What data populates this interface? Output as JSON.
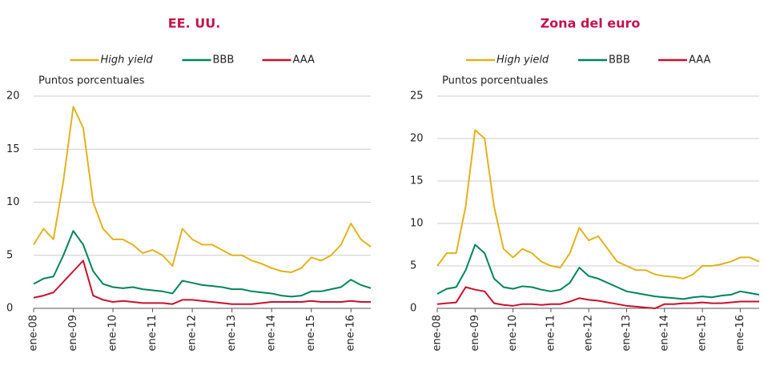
{
  "chart_data": [
    {
      "type": "line",
      "title": "EE. UU.",
      "y_label": "Puntos porcentuales",
      "categories": [
        "ene-08",
        null,
        null,
        null,
        "ene-09",
        null,
        null,
        null,
        "ene-10",
        null,
        null,
        null,
        "ene-11",
        null,
        null,
        null,
        "ene-12",
        null,
        null,
        null,
        "ene-13",
        null,
        null,
        null,
        "ene-14",
        null,
        null,
        null,
        "ene-15",
        null,
        null,
        null,
        "ene-16",
        null,
        null
      ],
      "series": [
        {
          "name": "High yield",
          "color": "#e0b21e",
          "values": [
            6,
            7.5,
            6.5,
            12,
            19,
            17,
            10,
            7.5,
            6.5,
            6.5,
            6,
            5.2,
            5.5,
            5,
            4,
            7.5,
            6.5,
            6,
            6,
            5.5,
            5,
            5,
            4.5,
            4.2,
            3.8,
            3.5,
            3.4,
            3.8,
            4.8,
            4.5,
            5,
            6,
            8,
            6.5,
            5.8
          ]
        },
        {
          "name": "BBB",
          "color": "#00845a",
          "values": [
            2.3,
            2.8,
            3,
            5,
            7.3,
            6,
            3.5,
            2.3,
            2,
            1.9,
            2,
            1.8,
            1.7,
            1.6,
            1.4,
            2.6,
            2.4,
            2.2,
            2.1,
            2,
            1.8,
            1.8,
            1.6,
            1.5,
            1.4,
            1.2,
            1.1,
            1.2,
            1.6,
            1.6,
            1.8,
            2,
            2.7,
            2.2,
            1.9
          ]
        },
        {
          "name": "AAA",
          "color": "#c8102e",
          "values": [
            1,
            1.2,
            1.5,
            2.5,
            3.5,
            4.5,
            1.2,
            0.8,
            0.6,
            0.7,
            0.6,
            0.5,
            0.5,
            0.5,
            0.4,
            0.8,
            0.8,
            0.7,
            0.6,
            0.5,
            0.4,
            0.4,
            0.4,
            0.5,
            0.6,
            0.6,
            0.6,
            0.6,
            0.7,
            0.6,
            0.6,
            0.6,
            0.7,
            0.6,
            0.6
          ]
        }
      ],
      "ylim": [
        0,
        20
      ],
      "yticks": [
        0,
        5,
        10,
        15,
        20
      ],
      "grid": true
    },
    {
      "type": "line",
      "title": "Zona del euro",
      "y_label": "Puntos porcentuales",
      "categories": [
        "ene-08",
        null,
        null,
        null,
        "ene-09",
        null,
        null,
        null,
        "ene-10",
        null,
        null,
        null,
        "ene-11",
        null,
        null,
        null,
        "ene-12",
        null,
        null,
        null,
        "ene-13",
        null,
        null,
        null,
        "ene-14",
        null,
        null,
        null,
        "ene-15",
        null,
        null,
        null,
        "ene-16",
        null,
        null
      ],
      "series": [
        {
          "name": "High yield",
          "color": "#e0b21e",
          "values": [
            5,
            6.5,
            6.5,
            12,
            21,
            20,
            12,
            7,
            6,
            7,
            6.5,
            5.5,
            5,
            4.8,
            6.5,
            9.5,
            8,
            8.5,
            7,
            5.5,
            5,
            4.5,
            4.5,
            4,
            3.8,
            3.7,
            3.5,
            4,
            5,
            5,
            5.2,
            5.5,
            6,
            6,
            5.5
          ]
        },
        {
          "name": "BBB",
          "color": "#00845a",
          "values": [
            1.7,
            2.3,
            2.5,
            4.5,
            7.5,
            6.5,
            3.5,
            2.5,
            2.3,
            2.6,
            2.5,
            2.2,
            2,
            2.2,
            3,
            4.8,
            3.8,
            3.5,
            3,
            2.5,
            2,
            1.8,
            1.6,
            1.4,
            1.3,
            1.2,
            1.1,
            1.3,
            1.4,
            1.3,
            1.5,
            1.6,
            2,
            1.8,
            1.6
          ]
        },
        {
          "name": "AAA",
          "color": "#c8102e",
          "values": [
            0.5,
            0.6,
            0.7,
            2.5,
            2.2,
            2,
            0.6,
            0.4,
            0.3,
            0.5,
            0.5,
            0.4,
            0.5,
            0.5,
            0.8,
            1.2,
            1,
            0.9,
            0.7,
            0.5,
            0.3,
            0.2,
            0.1,
            0,
            0.5,
            0.5,
            0.6,
            0.6,
            0.7,
            0.6,
            0.6,
            0.7,
            0.8,
            0.8,
            0.8
          ]
        }
      ],
      "ylim": [
        0,
        25
      ],
      "yticks": [
        0,
        5,
        10,
        15,
        20,
        25
      ],
      "grid": true
    }
  ]
}
